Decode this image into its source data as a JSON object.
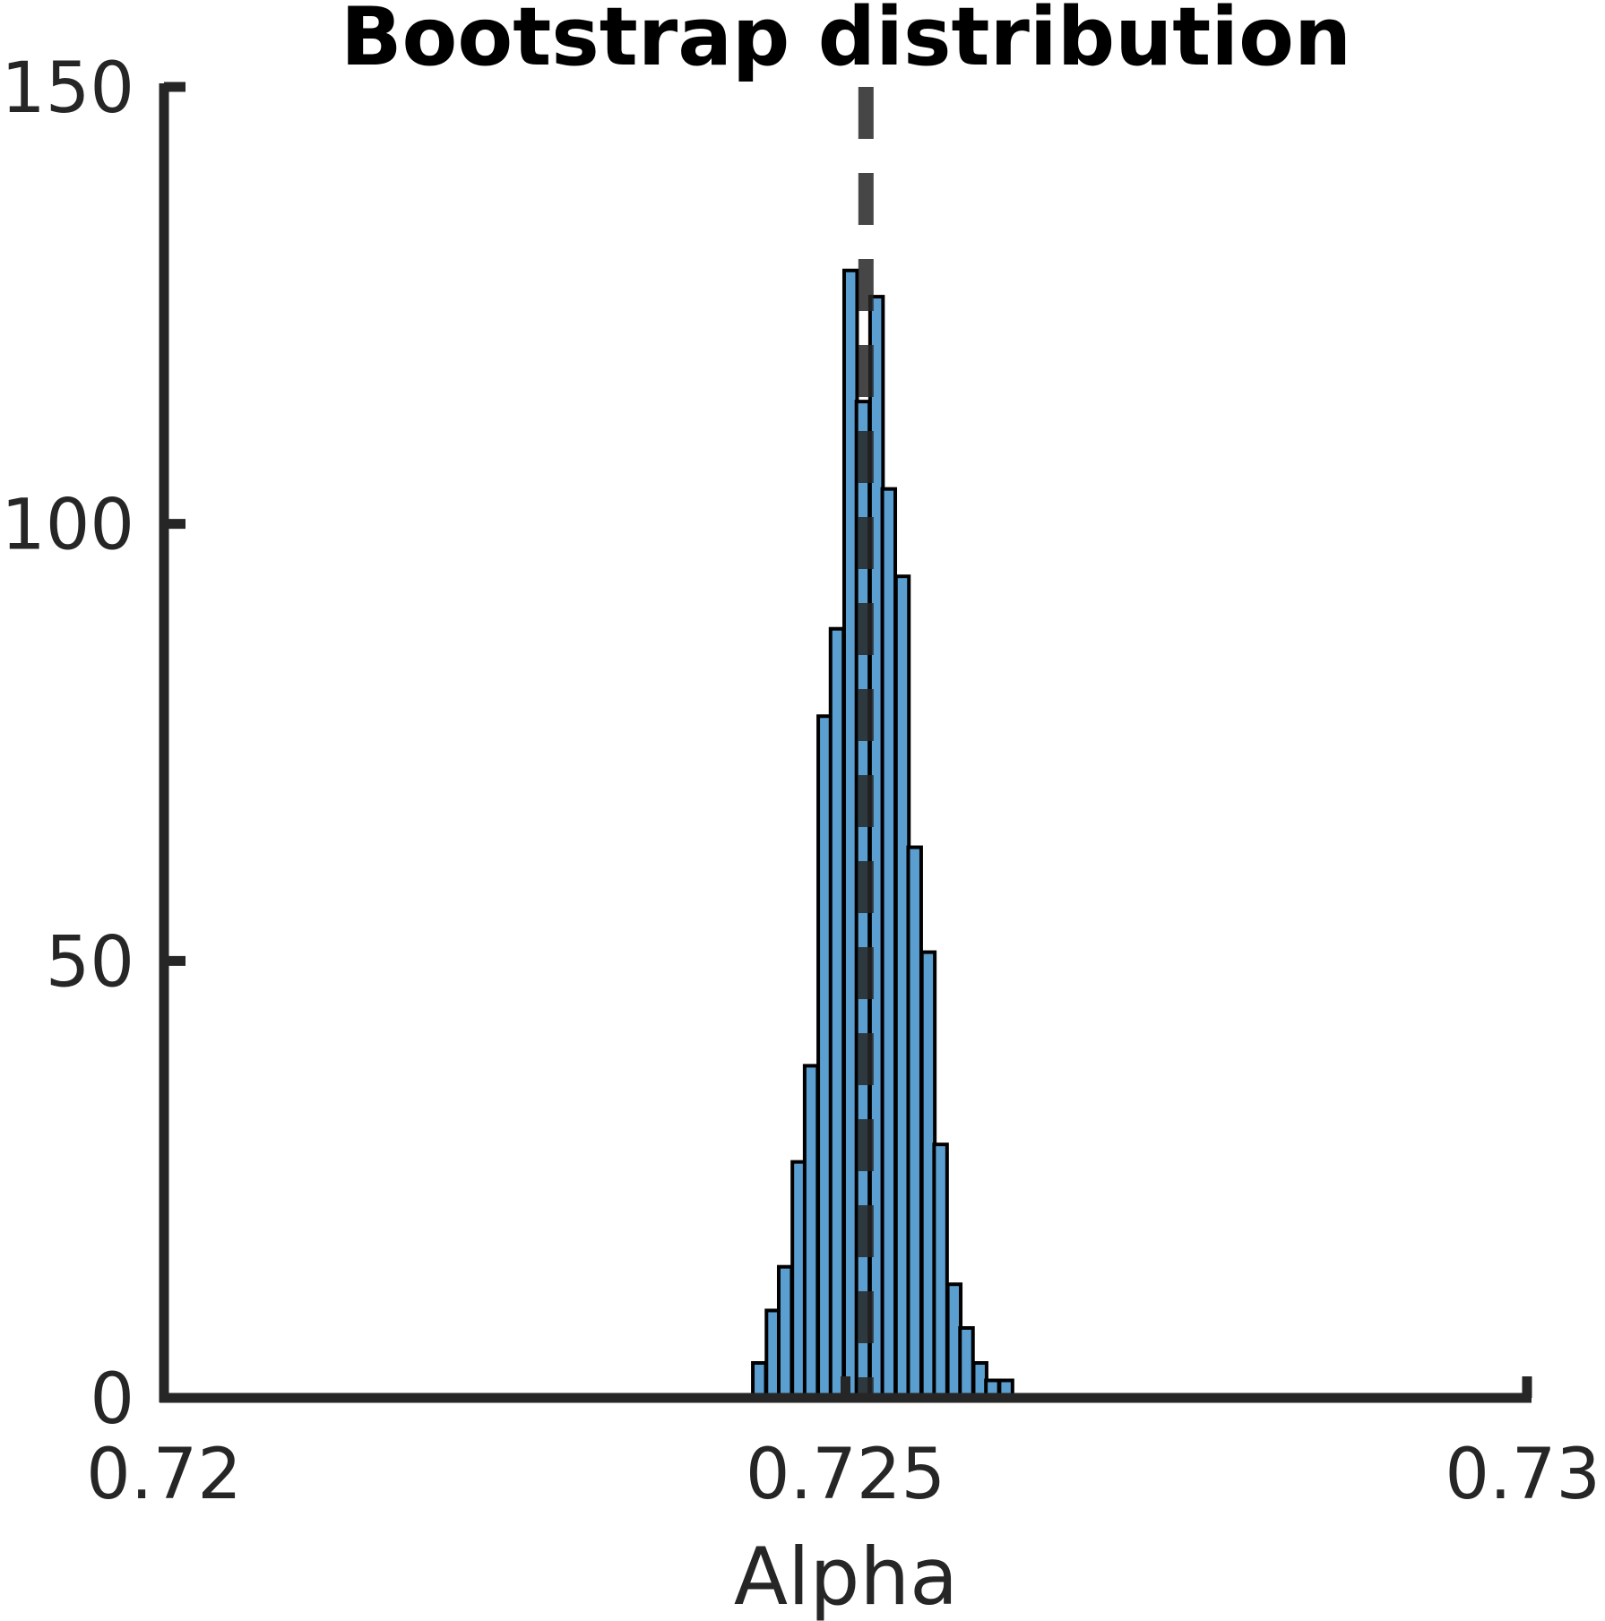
{
  "chart_data": {
    "type": "bar",
    "title": "Bootstrap distribution",
    "xlabel": "Alpha",
    "ylabel": "",
    "xlim": [
      0.72,
      0.73
    ],
    "ylim": [
      0,
      150
    ],
    "x_ticks": [
      0.72,
      0.725,
      0.73
    ],
    "x_tick_labels": [
      "0.72",
      "0.725",
      "0.73"
    ],
    "y_ticks": [
      0,
      50,
      100,
      150
    ],
    "y_tick_labels": [
      "0",
      "50",
      "100",
      "150"
    ],
    "bin_width": 9.51e-05,
    "bins": [
      {
        "x0": 0.72432,
        "count": 4
      },
      {
        "x0": 0.72442,
        "count": 10
      },
      {
        "x0": 0.72451,
        "count": 15
      },
      {
        "x0": 0.72461,
        "count": 27
      },
      {
        "x0": 0.7247,
        "count": 38
      },
      {
        "x0": 0.7248,
        "count": 78
      },
      {
        "x0": 0.72489,
        "count": 88
      },
      {
        "x0": 0.72499,
        "count": 129
      },
      {
        "x0": 0.72508,
        "count": 114
      },
      {
        "x0": 0.72518,
        "count": 126
      },
      {
        "x0": 0.72527,
        "count": 104
      },
      {
        "x0": 0.72537,
        "count": 94
      },
      {
        "x0": 0.72546,
        "count": 63
      },
      {
        "x0": 0.72556,
        "count": 51
      },
      {
        "x0": 0.72565,
        "count": 29
      },
      {
        "x0": 0.72575,
        "count": 13
      },
      {
        "x0": 0.72584,
        "count": 8
      },
      {
        "x0": 0.72594,
        "count": 4
      },
      {
        "x0": 0.72603,
        "count": 2
      },
      {
        "x0": 0.72613,
        "count": 2
      }
    ],
    "reference_line": {
      "x": 0.72515,
      "style": "dashed"
    },
    "colors": {
      "bar_fill": "#5b9fd0",
      "bar_edge": "#000000",
      "axis": "#262626",
      "reference_line": "#262626"
    },
    "grid": false,
    "legend": "none"
  }
}
